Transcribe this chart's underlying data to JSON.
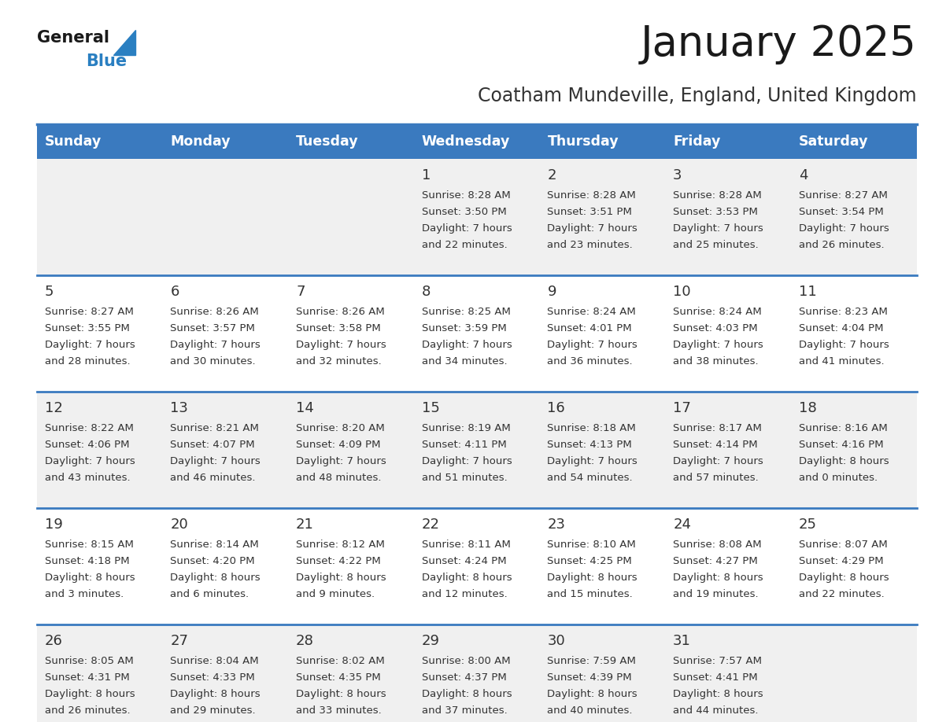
{
  "title": "January 2025",
  "subtitle": "Coatham Mundeville, England, United Kingdom",
  "days_of_week": [
    "Sunday",
    "Monday",
    "Tuesday",
    "Wednesday",
    "Thursday",
    "Friday",
    "Saturday"
  ],
  "header_bg": "#3a7abf",
  "header_text": "#ffffff",
  "cell_bg_odd": "#f0f0f0",
  "cell_bg_even": "#ffffff",
  "border_color": "#3a7abf",
  "text_color": "#333333",
  "day_num_color": "#333333",
  "title_color": "#1a1a1a",
  "subtitle_color": "#333333",
  "logo_general_color": "#1a1a1a",
  "logo_blue_color": "#2a7fc1",
  "calendar_data": [
    [
      null,
      null,
      null,
      {
        "day": "1",
        "sunrise": "8:28 AM",
        "sunset": "3:50 PM",
        "daylight_h": "7 hours",
        "daylight_m": "and 22 minutes."
      },
      {
        "day": "2",
        "sunrise": "8:28 AM",
        "sunset": "3:51 PM",
        "daylight_h": "7 hours",
        "daylight_m": "and 23 minutes."
      },
      {
        "day": "3",
        "sunrise": "8:28 AM",
        "sunset": "3:53 PM",
        "daylight_h": "7 hours",
        "daylight_m": "and 25 minutes."
      },
      {
        "day": "4",
        "sunrise": "8:27 AM",
        "sunset": "3:54 PM",
        "daylight_h": "7 hours",
        "daylight_m": "and 26 minutes."
      }
    ],
    [
      {
        "day": "5",
        "sunrise": "8:27 AM",
        "sunset": "3:55 PM",
        "daylight_h": "7 hours",
        "daylight_m": "and 28 minutes."
      },
      {
        "day": "6",
        "sunrise": "8:26 AM",
        "sunset": "3:57 PM",
        "daylight_h": "7 hours",
        "daylight_m": "and 30 minutes."
      },
      {
        "day": "7",
        "sunrise": "8:26 AM",
        "sunset": "3:58 PM",
        "daylight_h": "7 hours",
        "daylight_m": "and 32 minutes."
      },
      {
        "day": "8",
        "sunrise": "8:25 AM",
        "sunset": "3:59 PM",
        "daylight_h": "7 hours",
        "daylight_m": "and 34 minutes."
      },
      {
        "day": "9",
        "sunrise": "8:24 AM",
        "sunset": "4:01 PM",
        "daylight_h": "7 hours",
        "daylight_m": "and 36 minutes."
      },
      {
        "day": "10",
        "sunrise": "8:24 AM",
        "sunset": "4:03 PM",
        "daylight_h": "7 hours",
        "daylight_m": "and 38 minutes."
      },
      {
        "day": "11",
        "sunrise": "8:23 AM",
        "sunset": "4:04 PM",
        "daylight_h": "7 hours",
        "daylight_m": "and 41 minutes."
      }
    ],
    [
      {
        "day": "12",
        "sunrise": "8:22 AM",
        "sunset": "4:06 PM",
        "daylight_h": "7 hours",
        "daylight_m": "and 43 minutes."
      },
      {
        "day": "13",
        "sunrise": "8:21 AM",
        "sunset": "4:07 PM",
        "daylight_h": "7 hours",
        "daylight_m": "and 46 minutes."
      },
      {
        "day": "14",
        "sunrise": "8:20 AM",
        "sunset": "4:09 PM",
        "daylight_h": "7 hours",
        "daylight_m": "and 48 minutes."
      },
      {
        "day": "15",
        "sunrise": "8:19 AM",
        "sunset": "4:11 PM",
        "daylight_h": "7 hours",
        "daylight_m": "and 51 minutes."
      },
      {
        "day": "16",
        "sunrise": "8:18 AM",
        "sunset": "4:13 PM",
        "daylight_h": "7 hours",
        "daylight_m": "and 54 minutes."
      },
      {
        "day": "17",
        "sunrise": "8:17 AM",
        "sunset": "4:14 PM",
        "daylight_h": "7 hours",
        "daylight_m": "and 57 minutes."
      },
      {
        "day": "18",
        "sunrise": "8:16 AM",
        "sunset": "4:16 PM",
        "daylight_h": "8 hours",
        "daylight_m": "and 0 minutes."
      }
    ],
    [
      {
        "day": "19",
        "sunrise": "8:15 AM",
        "sunset": "4:18 PM",
        "daylight_h": "8 hours",
        "daylight_m": "and 3 minutes."
      },
      {
        "day": "20",
        "sunrise": "8:14 AM",
        "sunset": "4:20 PM",
        "daylight_h": "8 hours",
        "daylight_m": "and 6 minutes."
      },
      {
        "day": "21",
        "sunrise": "8:12 AM",
        "sunset": "4:22 PM",
        "daylight_h": "8 hours",
        "daylight_m": "and 9 minutes."
      },
      {
        "day": "22",
        "sunrise": "8:11 AM",
        "sunset": "4:24 PM",
        "daylight_h": "8 hours",
        "daylight_m": "and 12 minutes."
      },
      {
        "day": "23",
        "sunrise": "8:10 AM",
        "sunset": "4:25 PM",
        "daylight_h": "8 hours",
        "daylight_m": "and 15 minutes."
      },
      {
        "day": "24",
        "sunrise": "8:08 AM",
        "sunset": "4:27 PM",
        "daylight_h": "8 hours",
        "daylight_m": "and 19 minutes."
      },
      {
        "day": "25",
        "sunrise": "8:07 AM",
        "sunset": "4:29 PM",
        "daylight_h": "8 hours",
        "daylight_m": "and 22 minutes."
      }
    ],
    [
      {
        "day": "26",
        "sunrise": "8:05 AM",
        "sunset": "4:31 PM",
        "daylight_h": "8 hours",
        "daylight_m": "and 26 minutes."
      },
      {
        "day": "27",
        "sunrise": "8:04 AM",
        "sunset": "4:33 PM",
        "daylight_h": "8 hours",
        "daylight_m": "and 29 minutes."
      },
      {
        "day": "28",
        "sunrise": "8:02 AM",
        "sunset": "4:35 PM",
        "daylight_h": "8 hours",
        "daylight_m": "and 33 minutes."
      },
      {
        "day": "29",
        "sunrise": "8:00 AM",
        "sunset": "4:37 PM",
        "daylight_h": "8 hours",
        "daylight_m": "and 37 minutes."
      },
      {
        "day": "30",
        "sunrise": "7:59 AM",
        "sunset": "4:39 PM",
        "daylight_h": "8 hours",
        "daylight_m": "and 40 minutes."
      },
      {
        "day": "31",
        "sunrise": "7:57 AM",
        "sunset": "4:41 PM",
        "daylight_h": "8 hours",
        "daylight_m": "and 44 minutes."
      },
      null
    ]
  ]
}
